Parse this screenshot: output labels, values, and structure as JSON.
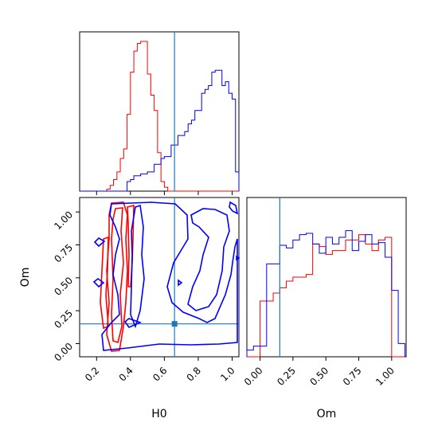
{
  "colors": {
    "series_a": "#ff0000",
    "series_b": "#0000ff",
    "truth": "#1f77b4"
  },
  "chart_data": [
    {
      "type": "step-histogram",
      "panel": "H0 marginal",
      "xlim": [
        0.1,
        1.04
      ],
      "bins_x": [
        0.1,
        0.12,
        0.14,
        0.16,
        0.18,
        0.2,
        0.22,
        0.24,
        0.26,
        0.28,
        0.3,
        0.32,
        0.34,
        0.36,
        0.38,
        0.4,
        0.42,
        0.44,
        0.46,
        0.48,
        0.5,
        0.52,
        0.54,
        0.56,
        0.58,
        0.6,
        0.62,
        0.64,
        0.66,
        0.68,
        0.7,
        0.72,
        0.74,
        0.76,
        0.78,
        0.8,
        0.82,
        0.84,
        0.86,
        0.88,
        0.9,
        0.92,
        0.94,
        0.96,
        0.98,
        1.0,
        1.02,
        1.04
      ],
      "series": [
        {
          "color": "red",
          "values": [
            0,
            0,
            0,
            0,
            0,
            0,
            0,
            0,
            0.01,
            0.03,
            0.06,
            0.1,
            0.17,
            0.22,
            0.4,
            0.62,
            0.73,
            0.77,
            0.78,
            0.78,
            0.61,
            0.5,
            0.42,
            0.2,
            0.05,
            0.02,
            0,
            0,
            0,
            0,
            0,
            0,
            0,
            0,
            0,
            0,
            0,
            0,
            0,
            0,
            0,
            0,
            0,
            0,
            0,
            0,
            0
          ]
        },
        {
          "color": "blue",
          "values": [
            0,
            0,
            0,
            0,
            0,
            0,
            0,
            0,
            0,
            0,
            0,
            0,
            0,
            0,
            0.05,
            0.06,
            0.08,
            0.08,
            0.09,
            0.09,
            0.1,
            0.1,
            0.14,
            0.14,
            0.17,
            0.18,
            0.18,
            0.24,
            0.24,
            0.29,
            0.29,
            0.31,
            0.35,
            0.37,
            0.42,
            0.42,
            0.51,
            0.53,
            0.55,
            0.62,
            0.63,
            0.63,
            0.55,
            0.57,
            0.51,
            0.48,
            0.1
          ]
        }
      ]
    },
    {
      "type": "contour",
      "panel": "H0 vs Om",
      "xlabel": "H0",
      "ylabel": "Om",
      "xlim": [
        0.1,
        1.04
      ],
      "ylim": [
        -0.1,
        1.11
      ],
      "x_ticks": [
        "0.2",
        "0.4",
        "0.6",
        "0.8",
        "1.0"
      ],
      "y_ticks": [
        "0.00",
        "0.25",
        "0.50",
        "0.75",
        "1.00"
      ],
      "truth": {
        "x": 0.66,
        "y": 0.15
      }
    },
    {
      "type": "step-histogram",
      "panel": "Om marginal",
      "xlabel": "Om",
      "xlim": [
        -0.1,
        1.11
      ],
      "x_ticks": [
        "0.00",
        "0.25",
        "0.50",
        "0.75",
        "1.00"
      ],
      "truth": {
        "x": 0.15
      },
      "bins_x": [
        -0.1,
        -0.05,
        0.0,
        0.05,
        0.1,
        0.15,
        0.2,
        0.25,
        0.3,
        0.35,
        0.4,
        0.45,
        0.5,
        0.55,
        0.6,
        0.65,
        0.7,
        0.75,
        0.8,
        0.85,
        0.9,
        0.95,
        1.0,
        1.05,
        1.1
      ],
      "series": [
        {
          "color": "red",
          "values": [
            0,
            0,
            0.42,
            0.42,
            0.48,
            0.52,
            0.57,
            0.6,
            0.6,
            0.62,
            0.85,
            0.83,
            0.77,
            0.8,
            0.8,
            0.88,
            0.88,
            0.92,
            0.85,
            0.8,
            0.88,
            0.9,
            0,
            0
          ]
        },
        {
          "color": "blue",
          "values": [
            0.05,
            0.08,
            0.08,
            0.7,
            0.7,
            0.84,
            0.82,
            0.88,
            0.92,
            0.93,
            0.85,
            0.78,
            0.9,
            0.85,
            0.9,
            0.95,
            0.8,
            0.87,
            0.92,
            0.85,
            0.86,
            0.75,
            0.5,
            0.1
          ]
        }
      ]
    }
  ]
}
